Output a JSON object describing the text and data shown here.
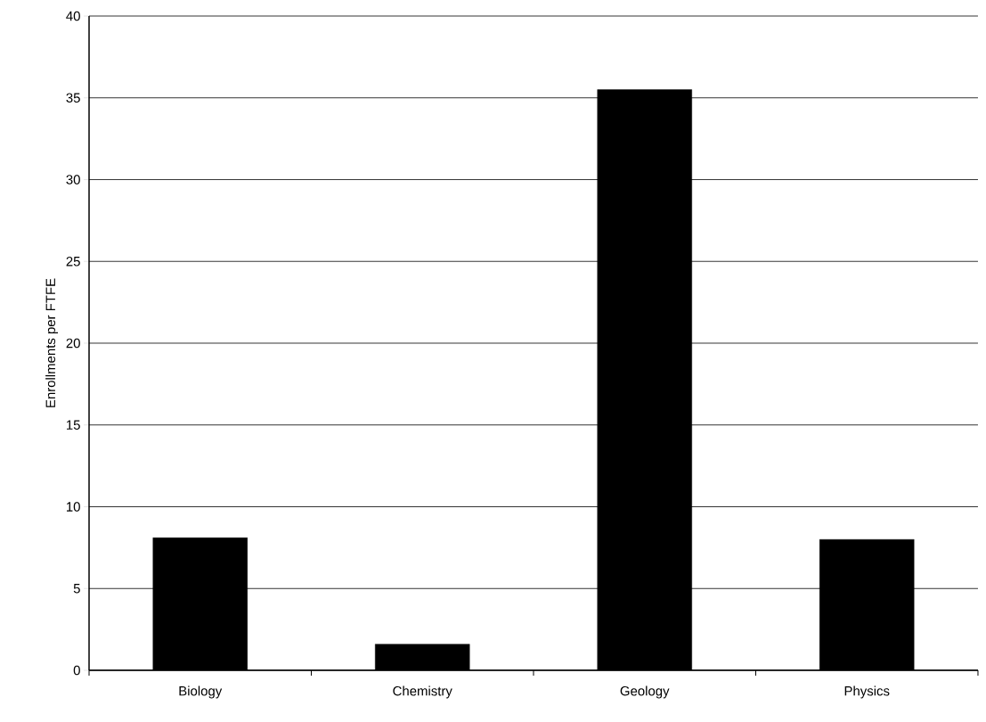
{
  "chart_data": {
    "type": "bar",
    "ylabel": "Enrollments per FTFE",
    "categories": [
      "Biology",
      "Chemistry",
      "Geology",
      "Physics"
    ],
    "values": [
      8.1,
      1.6,
      35.5,
      8.0
    ],
    "color": "#000000",
    "ylim": [
      0,
      40
    ],
    "yticks": [
      0,
      5,
      10,
      15,
      20,
      25,
      30,
      35,
      40
    ],
    "grid": "y"
  }
}
